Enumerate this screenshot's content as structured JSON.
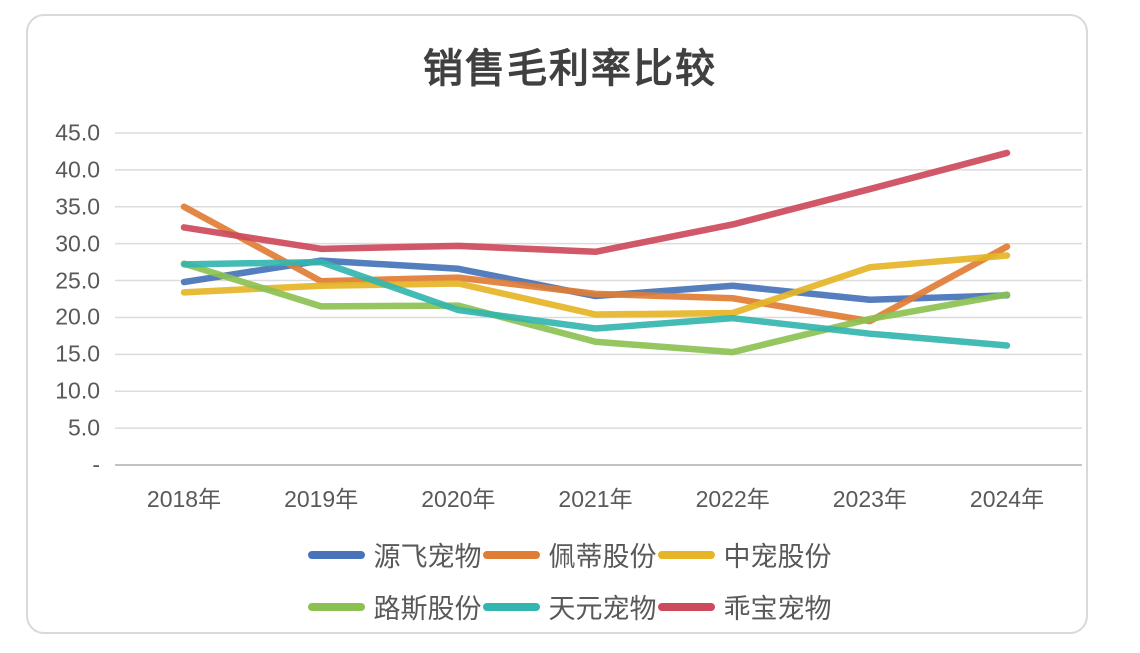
{
  "chart_data": {
    "type": "line",
    "title": "销售毛利率比较",
    "categories": [
      "2018年",
      "2019年",
      "2020年",
      "2021年",
      "2022年",
      "2023年",
      "2024年"
    ],
    "series": [
      {
        "name": "源飞宠物",
        "color": "#4673b9",
        "values": [
          24.8,
          27.7,
          26.6,
          22.9,
          24.3,
          22.4,
          23.0
        ]
      },
      {
        "name": "佩蒂股份",
        "color": "#e07d35",
        "values": [
          35.0,
          24.9,
          25.4,
          23.2,
          22.6,
          19.5,
          29.6
        ]
      },
      {
        "name": "中宠股份",
        "color": "#e5b427",
        "values": [
          23.4,
          24.3,
          24.6,
          20.4,
          20.6,
          26.8,
          28.4
        ]
      },
      {
        "name": "路斯股份",
        "color": "#8cc152",
        "values": [
          27.3,
          21.5,
          21.6,
          16.7,
          15.3,
          19.8,
          23.1
        ]
      },
      {
        "name": "天元宠物",
        "color": "#34b5ae",
        "values": [
          27.2,
          27.5,
          21.0,
          18.5,
          19.9,
          17.8,
          16.2
        ]
      },
      {
        "name": "乖宝宠物",
        "color": "#cc4a5c",
        "values": [
          32.2,
          29.3,
          29.7,
          28.9,
          32.6,
          37.4,
          42.3
        ]
      }
    ],
    "xlabel": "",
    "ylabel": "",
    "ylim": [
      0,
      45
    ],
    "ytick_step": 5,
    "ytick_labels_top_to_bottom": [
      "45.0",
      "40.0",
      "35.0",
      "30.0",
      "25.0",
      "20.0",
      "15.0",
      "10.0",
      "5.0",
      "-"
    ],
    "grid": true,
    "legend_position": "bottom",
    "legend_items_per_row": 3
  },
  "colors": {
    "gridline": "#dcdcdc",
    "baseline": "#c3c3c3",
    "axis_text": "#595959",
    "title_text": "#404040",
    "card_border": "#d9d9d9",
    "background": "#ffffff"
  }
}
